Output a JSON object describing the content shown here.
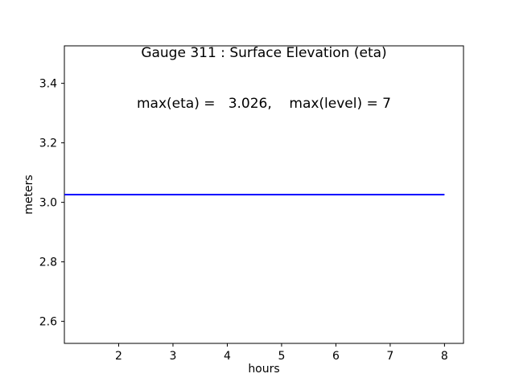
{
  "figure": {
    "background": "#ffffff"
  },
  "chart_data": {
    "type": "line",
    "title": "Gauge 311 : Surface Elevation (eta)",
    "subtitle": "max(eta) =   3.026,    max(level) = 7",
    "xlabel": "hours",
    "ylabel": "meters",
    "xlim": [
      1.0,
      8.35
    ],
    "ylim": [
      2.526,
      3.526
    ],
    "xticks": [
      "2",
      "3",
      "4",
      "5",
      "6",
      "7",
      "8"
    ],
    "yticks": [
      "2.6",
      "2.8",
      "3.0",
      "3.2",
      "3.4"
    ],
    "grid": false,
    "legend": null,
    "axis_color": "#000000",
    "text_color": "#000000",
    "series": [
      {
        "name": "eta",
        "color": "#0000ff",
        "linewidth": 2,
        "x": [
          1.0,
          8.0
        ],
        "y": [
          3.026,
          3.026
        ]
      }
    ],
    "stats": {
      "max_eta": 3.026,
      "max_level": 7
    }
  }
}
